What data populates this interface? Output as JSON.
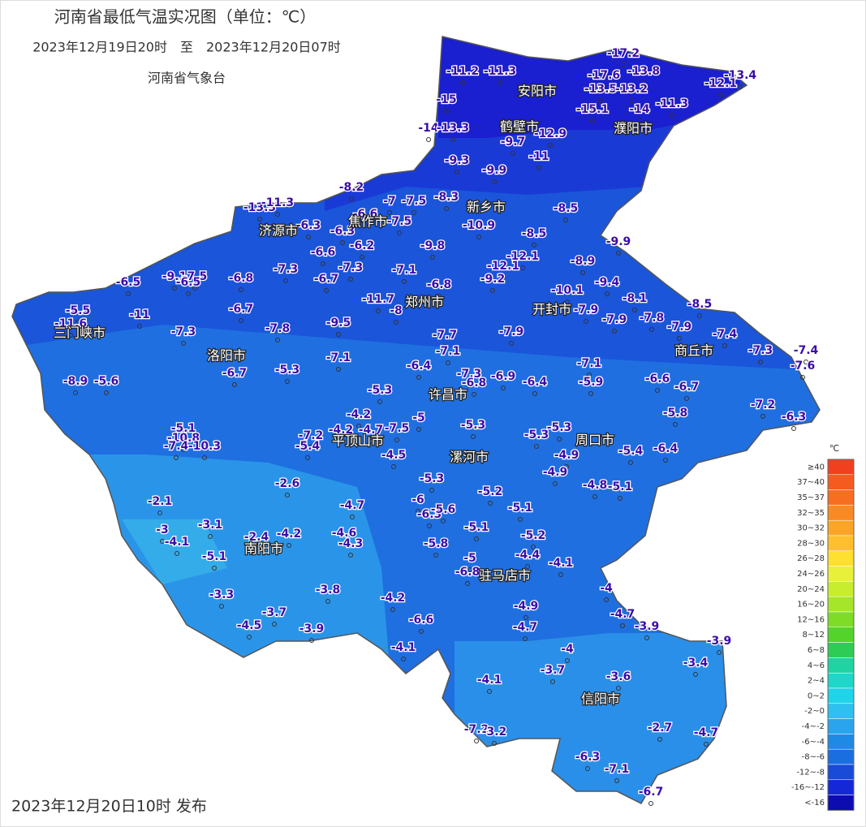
{
  "header": {
    "title": "河南省最低气温实况图（单位：℃）",
    "subtitle": "2023年12月19日20时　至　2023年12月20日07时",
    "agency": "河南省气象台"
  },
  "footer": "2023年12月20日10时 发布",
  "legend": {
    "unit": "℃",
    "items": [
      {
        "label": "≥40",
        "color": "#f04020"
      },
      {
        "label": "37~40",
        "color": "#f55a1f"
      },
      {
        "label": "35~37",
        "color": "#f76e21"
      },
      {
        "label": "32~35",
        "color": "#f98a23"
      },
      {
        "label": "30~32",
        "color": "#fba528"
      },
      {
        "label": "28~30",
        "color": "#fdbf2d"
      },
      {
        "label": "26~28",
        "color": "#fde030"
      },
      {
        "label": "24~26",
        "color": "#e9f03a"
      },
      {
        "label": "20~24",
        "color": "#c8ed2f"
      },
      {
        "label": "16~20",
        "color": "#a5e62a"
      },
      {
        "label": "12~16",
        "color": "#7edc26"
      },
      {
        "label": "8~12",
        "color": "#54d42a"
      },
      {
        "label": "6~8",
        "color": "#2ecc55"
      },
      {
        "label": "4~6",
        "color": "#1fd4a2"
      },
      {
        "label": "2~4",
        "color": "#1ed7c8"
      },
      {
        "label": "0~2",
        "color": "#21d3e8"
      },
      {
        "label": "-2~0",
        "color": "#2ec0ee"
      },
      {
        "label": "-4~-2",
        "color": "#2aa4ec"
      },
      {
        "label": "-6~-4",
        "color": "#1f8ae6"
      },
      {
        "label": "-8~-6",
        "color": "#1a6ee0"
      },
      {
        "label": "-12~-8",
        "color": "#1a4ad8"
      },
      {
        "label": "-16~-12",
        "color": "#1428d8"
      },
      {
        "label": "<-16",
        "color": "#0c0cb0"
      }
    ]
  },
  "cities": [
    "安阳市",
    "鹤壁市",
    "濮阳市",
    "新乡市",
    "焦作市",
    "济源市",
    "郑州市",
    "开封市",
    "三门峡市",
    "洛阳市",
    "商丘市",
    "许昌市",
    "平顶山市",
    "漯河市",
    "周口市",
    "南阳市",
    "驻马店市",
    "信阳市"
  ],
  "stations": [
    -17.2,
    -11.2,
    -11.3,
    -17.6,
    -13.8,
    -13.4,
    -12.1,
    -13.5,
    -13.2,
    -15,
    -15.1,
    -14,
    -11.3,
    -14,
    -13.3,
    -12.9,
    -9.7,
    -11,
    -9.3,
    -9.9,
    -8.2,
    -13.3,
    -11.3,
    -7,
    -7.5,
    -8.3,
    -6.6,
    -7.5,
    -8.5,
    -6.3,
    -10.9,
    -6.3,
    -8.5,
    -6.2,
    -9.8,
    -9.9,
    -6.6,
    -12.1,
    -8.9,
    -7.3,
    -7.3,
    -7.1,
    -12.1,
    -9.2,
    -6.8,
    -6.7,
    -9.1,
    -7.5,
    -6.5,
    -6.5,
    -6.8,
    -9.4,
    -10.1,
    -8.1,
    -11.7,
    -8.5,
    -5.5,
    -11,
    -6.7,
    -11.6,
    -8,
    -7.9,
    -9.5,
    -7.9,
    -7.8,
    -7.9,
    -7.3,
    -7.8,
    -7.7,
    -7.9,
    -7.4,
    -7.1,
    -7.1,
    -7.1,
    -7.3,
    -7.4,
    -7.6,
    -6.4,
    -5.3,
    -6.7,
    -7.3,
    -6.9,
    -6.4,
    -5.9,
    -6.8,
    -8.9,
    -5.6,
    -6.6,
    -6.7,
    -5.3,
    -7.2,
    -6.3,
    -5.8,
    -4.2,
    -5,
    -5.1,
    -5.3,
    -4.2,
    -4.7,
    -7.5,
    -7.2,
    -5.3,
    -5.3,
    -10.8,
    -7.4,
    -10.3,
    -5.4,
    -4.5,
    -4.9,
    -5.4,
    -6.4,
    -4.9,
    -5.3,
    -4.8,
    -5.1,
    -2.6,
    -2.1,
    -5.2,
    -6,
    -4.7,
    -6.3,
    -5.6,
    -5.1,
    -3.1,
    -3,
    -5.1,
    -4.6,
    -5.2,
    -2.4,
    -4.2,
    -4.1,
    -4.3,
    -5.8,
    -5.1,
    -4.4,
    -5,
    -4.1,
    -6.8,
    -4,
    -3.3,
    -3.8,
    -4.2,
    -4.9,
    -3.7,
    -4.7,
    -6.6,
    -4.5,
    -3.9,
    -4.7,
    -3.9,
    -3.9,
    -4.1,
    -4,
    -3.4,
    -3.7,
    -3.6,
    -4.1,
    -2.7,
    -4.7,
    -7.2,
    -3.2,
    -6.3,
    -7.1,
    -6.7
  ]
}
